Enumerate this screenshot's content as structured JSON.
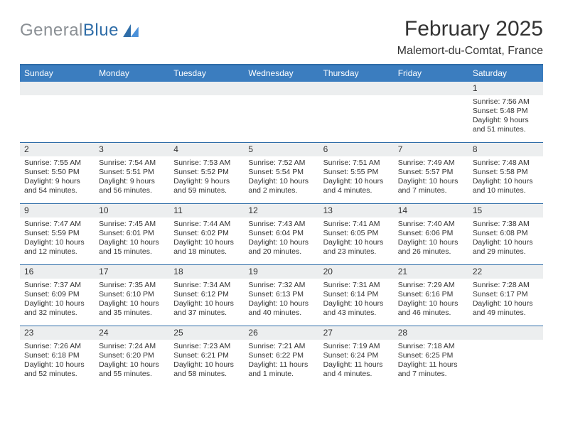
{
  "logo": {
    "part1": "General",
    "part2": "Blue"
  },
  "title": "February 2025",
  "location": "Malemort-du-Comtat, France",
  "colors": {
    "accent": "#3b7dbf",
    "divider": "#2f6da8",
    "shade": "#eceeef",
    "text": "#333333",
    "bg": "#ffffff"
  },
  "weekdays": [
    "Sunday",
    "Monday",
    "Tuesday",
    "Wednesday",
    "Thursday",
    "Friday",
    "Saturday"
  ],
  "weeks": [
    [
      null,
      null,
      null,
      null,
      null,
      null,
      {
        "n": "1",
        "sunrise": "Sunrise: 7:56 AM",
        "sunset": "Sunset: 5:48 PM",
        "daylight": "Daylight: 9 hours and 51 minutes."
      }
    ],
    [
      {
        "n": "2",
        "sunrise": "Sunrise: 7:55 AM",
        "sunset": "Sunset: 5:50 PM",
        "daylight": "Daylight: 9 hours and 54 minutes."
      },
      {
        "n": "3",
        "sunrise": "Sunrise: 7:54 AM",
        "sunset": "Sunset: 5:51 PM",
        "daylight": "Daylight: 9 hours and 56 minutes."
      },
      {
        "n": "4",
        "sunrise": "Sunrise: 7:53 AM",
        "sunset": "Sunset: 5:52 PM",
        "daylight": "Daylight: 9 hours and 59 minutes."
      },
      {
        "n": "5",
        "sunrise": "Sunrise: 7:52 AM",
        "sunset": "Sunset: 5:54 PM",
        "daylight": "Daylight: 10 hours and 2 minutes."
      },
      {
        "n": "6",
        "sunrise": "Sunrise: 7:51 AM",
        "sunset": "Sunset: 5:55 PM",
        "daylight": "Daylight: 10 hours and 4 minutes."
      },
      {
        "n": "7",
        "sunrise": "Sunrise: 7:49 AM",
        "sunset": "Sunset: 5:57 PM",
        "daylight": "Daylight: 10 hours and 7 minutes."
      },
      {
        "n": "8",
        "sunrise": "Sunrise: 7:48 AM",
        "sunset": "Sunset: 5:58 PM",
        "daylight": "Daylight: 10 hours and 10 minutes."
      }
    ],
    [
      {
        "n": "9",
        "sunrise": "Sunrise: 7:47 AM",
        "sunset": "Sunset: 5:59 PM",
        "daylight": "Daylight: 10 hours and 12 minutes."
      },
      {
        "n": "10",
        "sunrise": "Sunrise: 7:45 AM",
        "sunset": "Sunset: 6:01 PM",
        "daylight": "Daylight: 10 hours and 15 minutes."
      },
      {
        "n": "11",
        "sunrise": "Sunrise: 7:44 AM",
        "sunset": "Sunset: 6:02 PM",
        "daylight": "Daylight: 10 hours and 18 minutes."
      },
      {
        "n": "12",
        "sunrise": "Sunrise: 7:43 AM",
        "sunset": "Sunset: 6:04 PM",
        "daylight": "Daylight: 10 hours and 20 minutes."
      },
      {
        "n": "13",
        "sunrise": "Sunrise: 7:41 AM",
        "sunset": "Sunset: 6:05 PM",
        "daylight": "Daylight: 10 hours and 23 minutes."
      },
      {
        "n": "14",
        "sunrise": "Sunrise: 7:40 AM",
        "sunset": "Sunset: 6:06 PM",
        "daylight": "Daylight: 10 hours and 26 minutes."
      },
      {
        "n": "15",
        "sunrise": "Sunrise: 7:38 AM",
        "sunset": "Sunset: 6:08 PM",
        "daylight": "Daylight: 10 hours and 29 minutes."
      }
    ],
    [
      {
        "n": "16",
        "sunrise": "Sunrise: 7:37 AM",
        "sunset": "Sunset: 6:09 PM",
        "daylight": "Daylight: 10 hours and 32 minutes."
      },
      {
        "n": "17",
        "sunrise": "Sunrise: 7:35 AM",
        "sunset": "Sunset: 6:10 PM",
        "daylight": "Daylight: 10 hours and 35 minutes."
      },
      {
        "n": "18",
        "sunrise": "Sunrise: 7:34 AM",
        "sunset": "Sunset: 6:12 PM",
        "daylight": "Daylight: 10 hours and 37 minutes."
      },
      {
        "n": "19",
        "sunrise": "Sunrise: 7:32 AM",
        "sunset": "Sunset: 6:13 PM",
        "daylight": "Daylight: 10 hours and 40 minutes."
      },
      {
        "n": "20",
        "sunrise": "Sunrise: 7:31 AM",
        "sunset": "Sunset: 6:14 PM",
        "daylight": "Daylight: 10 hours and 43 minutes."
      },
      {
        "n": "21",
        "sunrise": "Sunrise: 7:29 AM",
        "sunset": "Sunset: 6:16 PM",
        "daylight": "Daylight: 10 hours and 46 minutes."
      },
      {
        "n": "22",
        "sunrise": "Sunrise: 7:28 AM",
        "sunset": "Sunset: 6:17 PM",
        "daylight": "Daylight: 10 hours and 49 minutes."
      }
    ],
    [
      {
        "n": "23",
        "sunrise": "Sunrise: 7:26 AM",
        "sunset": "Sunset: 6:18 PM",
        "daylight": "Daylight: 10 hours and 52 minutes."
      },
      {
        "n": "24",
        "sunrise": "Sunrise: 7:24 AM",
        "sunset": "Sunset: 6:20 PM",
        "daylight": "Daylight: 10 hours and 55 minutes."
      },
      {
        "n": "25",
        "sunrise": "Sunrise: 7:23 AM",
        "sunset": "Sunset: 6:21 PM",
        "daylight": "Daylight: 10 hours and 58 minutes."
      },
      {
        "n": "26",
        "sunrise": "Sunrise: 7:21 AM",
        "sunset": "Sunset: 6:22 PM",
        "daylight": "Daylight: 11 hours and 1 minute."
      },
      {
        "n": "27",
        "sunrise": "Sunrise: 7:19 AM",
        "sunset": "Sunset: 6:24 PM",
        "daylight": "Daylight: 11 hours and 4 minutes."
      },
      {
        "n": "28",
        "sunrise": "Sunrise: 7:18 AM",
        "sunset": "Sunset: 6:25 PM",
        "daylight": "Daylight: 11 hours and 7 minutes."
      },
      null
    ]
  ]
}
